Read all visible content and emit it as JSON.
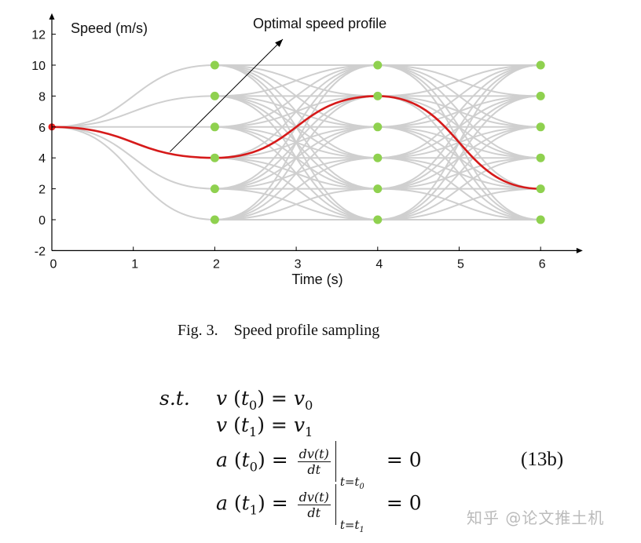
{
  "chart_data": {
    "type": "line",
    "xlabel": "Time (s)",
    "ylabel": "Speed (m/s)",
    "xlim": [
      0,
      6.45
    ],
    "ylim": [
      -2,
      13
    ],
    "xticks": [
      0,
      1,
      2,
      3,
      4,
      5,
      6
    ],
    "yticks": [
      -2,
      0,
      2,
      4,
      6,
      8,
      10,
      12
    ],
    "grid": false,
    "sample_times": [
      2,
      4,
      6
    ],
    "sample_speeds": [
      0,
      2,
      4,
      6,
      8,
      10
    ],
    "start_point": {
      "t": 0,
      "v": 6
    },
    "optimal_profile": {
      "points": [
        [
          0,
          6
        ],
        [
          2,
          4
        ],
        [
          4,
          8
        ],
        [
          6,
          2
        ]
      ]
    },
    "annotation": {
      "text": "Optimal speed profile",
      "target": [
        1.45,
        4.4
      ]
    },
    "colors": {
      "samples": "#cfcfcf",
      "optimal": "#d61a1a",
      "nodes": "#8fd14f",
      "start": "#e81c1c"
    }
  },
  "caption": "Fig. 3.    Speed profile sampling",
  "equations": {
    "st": "s.t.",
    "line1": {
      "lhs": "v",
      "arg": "t",
      "sub": "0",
      "rhs": "v",
      "rhs_sub": "0"
    },
    "line2": {
      "lhs": "v",
      "arg": "t",
      "sub": "1",
      "rhs": "v",
      "rhs_sub": "1"
    },
    "line3": {
      "lhs": "a",
      "arg": "t",
      "sub": "0",
      "num": "dv(t)",
      "den": "dt",
      "lim": "t=t",
      "lim_sub": "0",
      "rhs": "0"
    },
    "line4": {
      "lhs": "a",
      "arg": "t",
      "sub": "1",
      "num": "dv(t)",
      "den": "dt",
      "lim": "t=t",
      "lim_sub": "1",
      "rhs": "0"
    },
    "number": "(13b)"
  },
  "watermark": "知乎 @论文推土机"
}
